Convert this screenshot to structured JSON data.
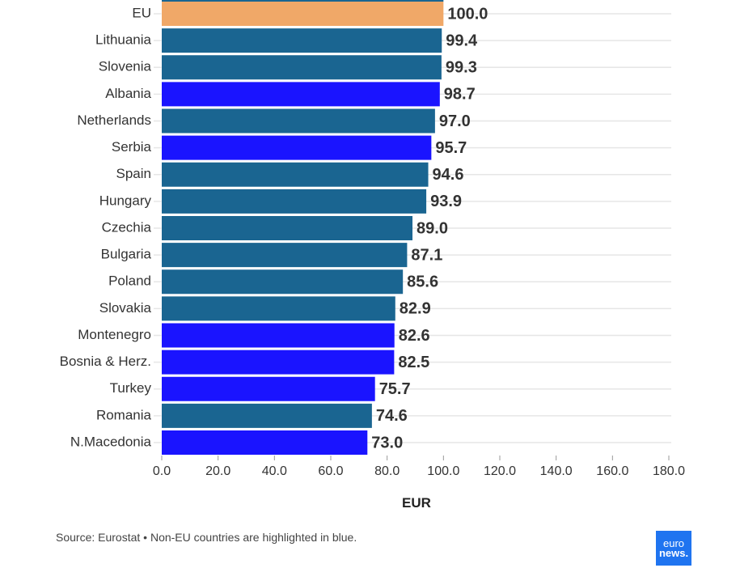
{
  "chart_data": {
    "type": "bar",
    "orientation": "horizontal",
    "categories": [
      "EU",
      "Lithuania",
      "Slovenia",
      "Albania",
      "Netherlands",
      "Serbia",
      "Spain",
      "Hungary",
      "Czechia",
      "Bulgaria",
      "Poland",
      "Slovakia",
      "Montenegro",
      "Bosnia & Herz.",
      "Turkey",
      "Romania",
      "N.Macedonia"
    ],
    "values": [
      100.0,
      99.4,
      99.3,
      98.7,
      97.0,
      95.7,
      94.6,
      93.9,
      89.0,
      87.1,
      85.6,
      82.9,
      82.6,
      82.5,
      75.7,
      74.6,
      73.0
    ],
    "value_labels": [
      "100.0",
      "99.4",
      "99.3",
      "98.7",
      "97.0",
      "95.7",
      "94.6",
      "93.9",
      "89.0",
      "87.1",
      "85.6",
      "82.9",
      "82.6",
      "82.5",
      "75.7",
      "74.6",
      "73.0"
    ],
    "groups": [
      "eu",
      "eu-member",
      "eu-member",
      "non-eu",
      "eu-member",
      "non-eu",
      "eu-member",
      "eu-member",
      "eu-member",
      "eu-member",
      "eu-member",
      "eu-member",
      "non-eu",
      "non-eu",
      "non-eu",
      "eu-member",
      "non-eu"
    ],
    "colors": {
      "eu": "#f0a868",
      "eu-member": "#1a6591",
      "non-eu": "#1a14ff"
    },
    "xlim": [
      0,
      180
    ],
    "xticks": [
      "0.0",
      "20.0",
      "40.0",
      "60.0",
      "80.0",
      "100.0",
      "120.0",
      "140.0",
      "160.0",
      "180.0"
    ],
    "xlabel": "EUR",
    "ylabel": "",
    "grid": true
  },
  "footer": {
    "source": "Source: Eurostat • Non-EU countries are highlighted in blue.",
    "logo_top": "euro",
    "logo_bottom": "news."
  }
}
